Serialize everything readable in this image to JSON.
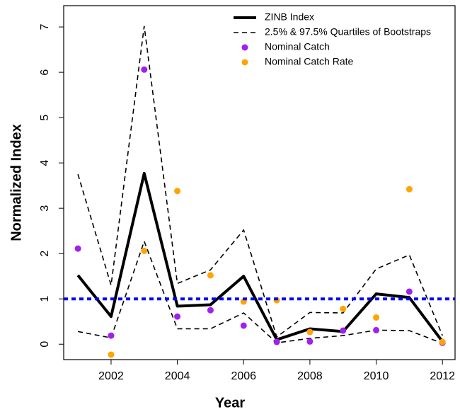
{
  "chart_data": {
    "type": "line",
    "xlabel": "Year",
    "ylabel": "Normalized Index",
    "x": [
      2001,
      2002,
      2003,
      2004,
      2005,
      2006,
      2007,
      2008,
      2009,
      2010,
      2011,
      2012
    ],
    "xlim": [
      2000.57,
      2012.38
    ],
    "ylim": [
      -0.34,
      7.47
    ],
    "xticks": [
      2002,
      2004,
      2006,
      2008,
      2010,
      2012
    ],
    "yticks": [
      0,
      1,
      2,
      3,
      4,
      5,
      6,
      7
    ],
    "legend": "top-right",
    "series": [
      {
        "name": "ZINB Index",
        "color": "#000000",
        "style": "line",
        "values": [
          1.52,
          0.61,
          3.77,
          0.84,
          0.87,
          1.5,
          0.1,
          0.34,
          0.28,
          1.11,
          1.03,
          0.06
        ]
      },
      {
        "name": "2.5% & 97.5% Quartiles of Bootstraps",
        "color": "#000000",
        "style": "dashed",
        "upper": [
          3.75,
          1.3,
          7.02,
          1.34,
          1.64,
          2.52,
          0.16,
          0.7,
          0.69,
          1.66,
          1.97,
          0.19
        ],
        "lower": [
          0.28,
          0.14,
          2.27,
          0.34,
          0.34,
          0.69,
          0.03,
          0.13,
          0.19,
          0.31,
          0.3,
          0.02
        ]
      },
      {
        "name": "Nominal Catch",
        "color": "#a020f0",
        "style": "points",
        "values": [
          2.11,
          0.19,
          6.06,
          0.61,
          0.75,
          0.41,
          0.05,
          0.06,
          0.3,
          0.31,
          1.16,
          0.03
        ]
      },
      {
        "name": "Nominal Catch Rate",
        "color": "#ffa500",
        "style": "points",
        "values": [
          null,
          -0.23,
          2.06,
          3.38,
          1.52,
          0.94,
          0.97,
          0.27,
          0.78,
          0.59,
          3.42,
          0.05
        ]
      }
    ],
    "reference_line": {
      "value": 1,
      "color": "#0000ff"
    }
  }
}
